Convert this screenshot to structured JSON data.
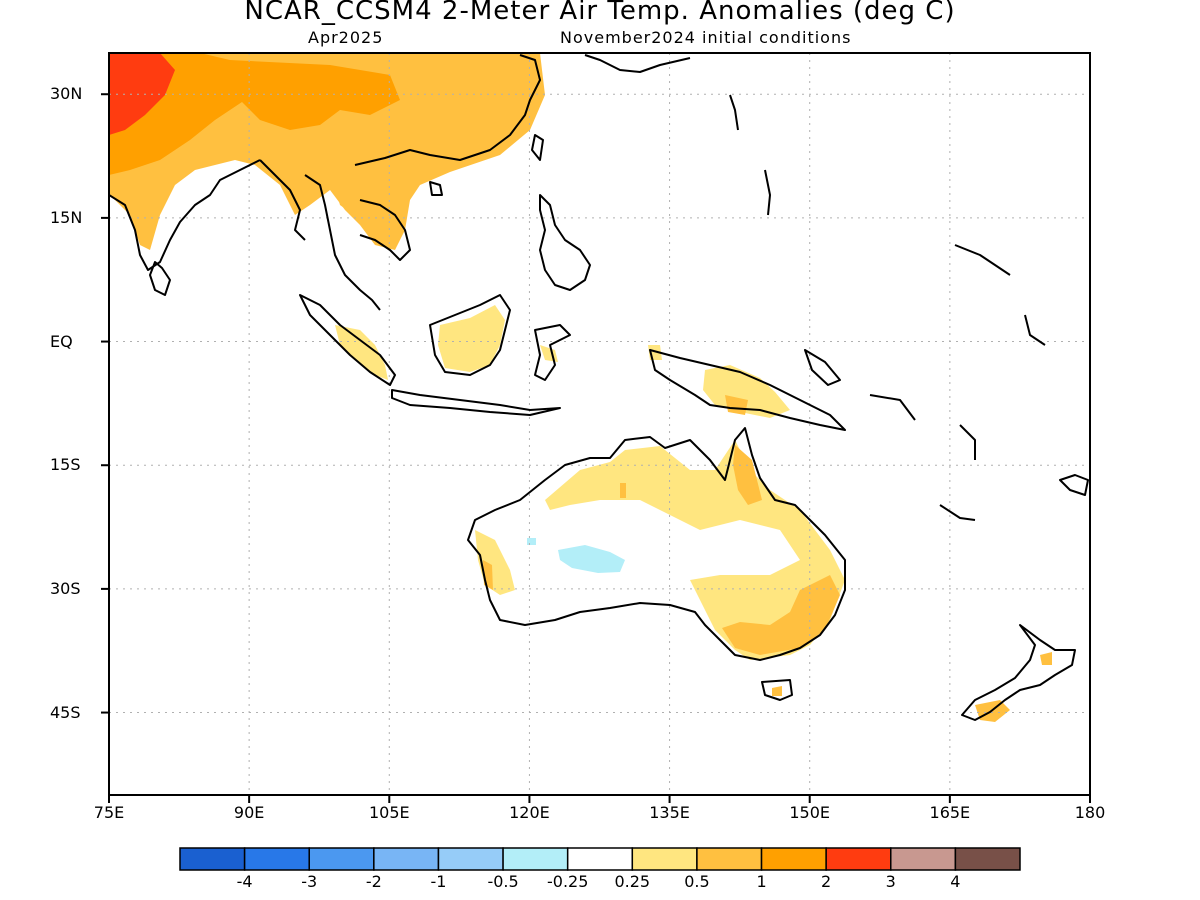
{
  "header": {
    "title": "NCAR_CCSM4 2-Meter Air Temp. Anomalies (deg C)",
    "valid_month": "Apr2025",
    "init": "November2024 initial conditions"
  },
  "map": {
    "projection": "equirectangular",
    "lon_range": [
      75,
      180
    ],
    "lat_range": [
      -55,
      35
    ],
    "gridlines": "dotted",
    "land_outline_color": "#000000",
    "lat_labels": [
      "30N",
      "15N",
      "EQ",
      "15S",
      "30S",
      "45S"
    ],
    "lon_labels": [
      "75E",
      "90E",
      "105E",
      "120E",
      "135E",
      "150E",
      "165E",
      "180"
    ]
  },
  "colorbar": {
    "colors": [
      "#1a60d0",
      "#2878e8",
      "#4b98f0",
      "#78b5f5",
      "#96ccf8",
      "#b3eef8",
      "#ffffff",
      "#ffe680",
      "#ffc040",
      "#ffa000",
      "#ff3c10",
      "#c89890",
      "#785048"
    ],
    "labels": [
      "-4",
      "-3",
      "-2",
      "-1",
      "-0.5",
      "-0.25",
      "0.25",
      "0.5",
      "1",
      "2",
      "3",
      "4"
    ]
  },
  "chart_data": {
    "type": "heatmap",
    "variable": "2-meter air temperature anomaly",
    "units": "deg C",
    "regions": [
      {
        "area": "India / Himalaya northwest",
        "range": "2 to 3"
      },
      {
        "area": "India, China, Indochina",
        "range": "1 to 2"
      },
      {
        "area": "South China coast",
        "range": "0.5 to 1"
      },
      {
        "area": "Indochina south",
        "range": "0.5 to 1"
      },
      {
        "area": "Borneo",
        "range": "0.25 to 0.5"
      },
      {
        "area": "Sumatra",
        "range": "0.25 to 0.5"
      },
      {
        "area": "New Guinea",
        "range": "0.25 to 0.5"
      },
      {
        "area": "Northern Australia",
        "range": "0.25 to 0.5"
      },
      {
        "area": "Cape York / Queensland",
        "range": "0.5 to 1"
      },
      {
        "area": "Eastern Australia",
        "range": "0.25 to 1"
      },
      {
        "area": "Southeast Australia",
        "range": "0.5 to 1"
      },
      {
        "area": "Western Australia coast",
        "range": "0.25 to 1"
      },
      {
        "area": "Central Western Australia",
        "range": "-0.5 to -0.25"
      },
      {
        "area": "Tasmania",
        "range": "0.5 to 1"
      },
      {
        "area": "New Zealand South Island",
        "range": "0.5 to 1"
      }
    ]
  }
}
